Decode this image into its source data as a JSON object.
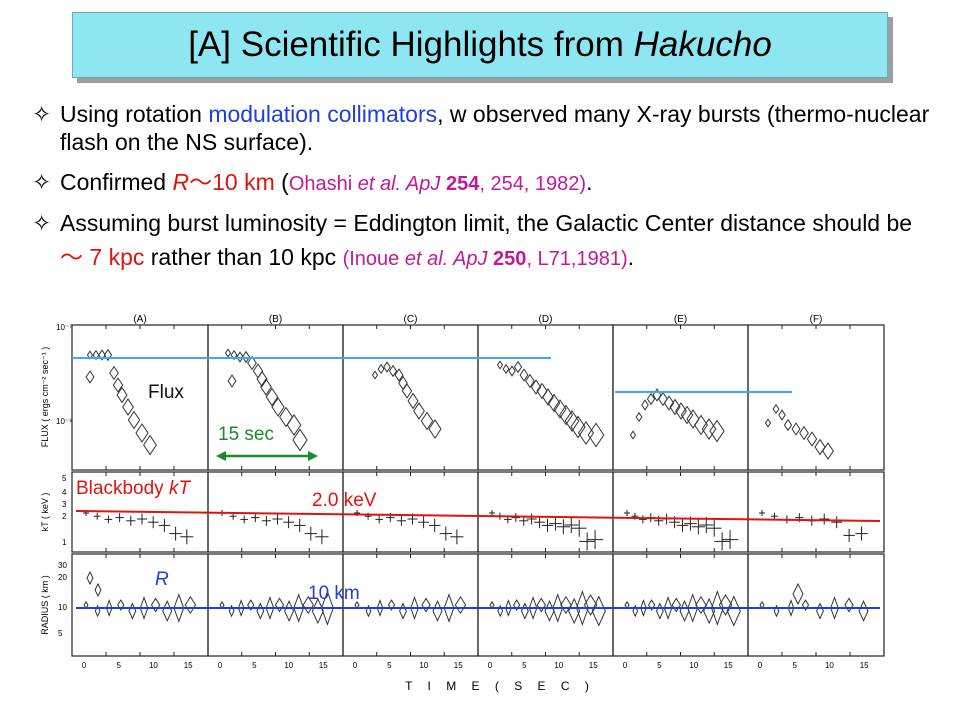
{
  "title": {
    "prefix": "[A] Scientific Highlights from ",
    "italic": "Hakucho"
  },
  "bullets": [
    {
      "a": "Using rotation ",
      "b": "modulation collimators",
      "c": ", w observed many X-ray bursts (thermo-nuclear flash on the NS surface)."
    },
    {
      "a": "Confirmed ",
      "r": "R",
      "tilde": "〜",
      "km": "10 km",
      "open": " (",
      "ref_a": "Ohashi ",
      "ref_it": "et al.  ApJ",
      "ref_b": " 254",
      "ref_c": ", 254, 1982)",
      "close": "."
    },
    {
      "a": "Assuming burst luminosity = Eddington limit, the Galactic Center distance should be ",
      "tilde": "〜",
      "kpc": " 7 kpc",
      "c": " rather than 10 kpc ",
      "ref_open": "(",
      "ref_a": "Inoue ",
      "ref_it1": "et al. ",
      "ref_it2": "ApJ",
      "ref_b": " 250",
      "ref_c": ", L71,1981)",
      "close": "."
    }
  ],
  "figure": {
    "panel_letters": [
      "(A)",
      "(B)",
      "(C)",
      "(D)",
      "(E)",
      "(F)"
    ],
    "row_labels": {
      "flux": "FLUX ( ergs cm⁻² sec⁻¹ )",
      "kt": "kT ( keV )",
      "radius": "RADIUS ( km )"
    },
    "x_axis_title": "T  I  M  E   ( S  E  C )",
    "x_ticks": [
      "0",
      "5",
      "10",
      "15"
    ],
    "flux_ticks": [
      "10⁻⁷",
      "10⁻⁸"
    ],
    "kt_ticks": [
      "5",
      "4",
      "3",
      "2",
      "1"
    ],
    "radius_ticks": [
      "30",
      "20",
      "10",
      "5"
    ],
    "annotations": {
      "flux": "Flux",
      "sec15": "15 sec",
      "bb_prefix": "Blackbody ",
      "bb_italic": "kT",
      "kev": "2.0 keV",
      "r": "R",
      "km10": "10 km"
    },
    "colors": {
      "flux_line": "#3fa9f5",
      "kt_line": "#e0140f",
      "radius_line": "#1f3fd8",
      "arrow": "#1c8a2a"
    }
  }
}
